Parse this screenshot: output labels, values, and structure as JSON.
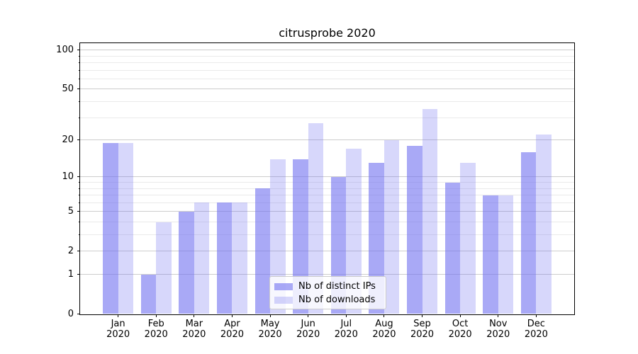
{
  "title": "citrusprobe 2020",
  "chart_data": {
    "type": "bar",
    "title": "citrusprobe 2020",
    "categories": [
      "Jan 2020",
      "Feb 2020",
      "Mar 2020",
      "Apr 2020",
      "May 2020",
      "Jun 2020",
      "Jul 2020",
      "Aug 2020",
      "Sep 2020",
      "Oct 2020",
      "Nov 2020",
      "Dec 2020"
    ],
    "x_tick_months": [
      "Jan",
      "Feb",
      "Mar",
      "Apr",
      "May",
      "Jun",
      "Jul",
      "Aug",
      "Sep",
      "Oct",
      "Nov",
      "Dec"
    ],
    "x_tick_year": "2020",
    "series": [
      {
        "name": "Nb of distinct IPs",
        "values": [
          19,
          1,
          5,
          6,
          8,
          14,
          10,
          13,
          18,
          9,
          7,
          16
        ],
        "color": "#6a6af0",
        "opacity": 0.58
      },
      {
        "name": "Nb of downloads",
        "values": [
          19,
          4,
          6,
          6,
          14,
          27,
          17,
          20,
          35,
          13,
          7,
          22
        ],
        "color": "#6a6af0",
        "opacity": 0.27
      }
    ],
    "yscale": "log1p",
    "ylim": [
      0,
      113
    ],
    "y_major_ticks": [
      0,
      1,
      2,
      5,
      10,
      20,
      50,
      100
    ],
    "y_minor_ticks": [
      3,
      4,
      6,
      7,
      8,
      9,
      30,
      40,
      60,
      70,
      80,
      90
    ],
    "grid": "both",
    "legend_position": "lower center"
  },
  "colors": {
    "background": "#ffffff",
    "axis": "#000000",
    "grid_major": "#cdcdcd",
    "grid_minor": "#eaeaea",
    "legend_border": "#cccccc",
    "text": "#000000"
  }
}
